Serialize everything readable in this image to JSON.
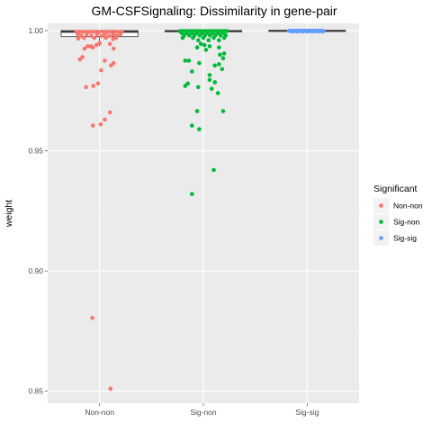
{
  "chart_data": {
    "type": "boxplot-jitter",
    "title": "GM-CSFSignaling: Dissimilarity in gene-pair",
    "xlabel": "",
    "ylabel": "weight",
    "ylim": [
      0.845,
      1.003
    ],
    "y_ticks": [
      0.85,
      0.9,
      0.95,
      1.0
    ],
    "y_tick_labels": [
      "0.85",
      "0.90",
      "0.95",
      "1.00"
    ],
    "grid": true,
    "legend": {
      "title": "Significant",
      "position": "right",
      "entries": [
        {
          "label": "Non-non",
          "color": "#F8766D"
        },
        {
          "label": "Sig-non",
          "color": "#00BA38"
        },
        {
          "label": "Sig-sig",
          "color": "#619CFF"
        }
      ]
    },
    "categories": [
      "Non-non",
      "Sig-non",
      "Sig-sig"
    ],
    "boxes": [
      {
        "category": "Non-non",
        "q1": 0.9975,
        "median": 0.9995,
        "q3": 1.0,
        "whisker_low": 0.9935,
        "whisker_high": 1.0
      },
      {
        "category": "Sig-non",
        "q1": 0.9995,
        "median": 0.9998,
        "q3": 1.0,
        "whisker_low": 0.9993,
        "whisker_high": 1.0
      },
      {
        "category": "Sig-sig",
        "q1": 0.9998,
        "median": 0.9999,
        "q3": 1.0,
        "whisker_low": 0.9997,
        "whisker_high": 1.0
      }
    ],
    "series": [
      {
        "name": "Non-non",
        "color": "#F8766D",
        "points": [
          [
            -0.45,
            0.9995
          ],
          [
            -0.38,
            0.9995
          ],
          [
            -0.33,
            0.9995
          ],
          [
            -0.27,
            0.9995
          ],
          [
            -0.2,
            0.9995
          ],
          [
            -0.14,
            0.9995
          ],
          [
            -0.08,
            0.9995
          ],
          [
            0.0,
            0.9995
          ],
          [
            0.08,
            0.9995
          ],
          [
            0.15,
            0.9995
          ],
          [
            0.22,
            0.9995
          ],
          [
            0.3,
            0.9995
          ],
          [
            0.36,
            0.9995
          ],
          [
            0.43,
            0.9995
          ],
          [
            -0.42,
            0.9985
          ],
          [
            -0.25,
            0.9985
          ],
          [
            -0.05,
            0.9985
          ],
          [
            0.1,
            0.9985
          ],
          [
            0.26,
            0.9985
          ],
          [
            0.4,
            0.9985
          ],
          [
            -0.35,
            0.9978
          ],
          [
            -0.16,
            0.9978
          ],
          [
            0.04,
            0.9978
          ],
          [
            0.18,
            0.9978
          ],
          [
            0.33,
            0.9978
          ],
          [
            -0.3,
            0.997
          ],
          [
            -0.1,
            0.997
          ],
          [
            0.12,
            0.997
          ],
          [
            0.32,
            0.997
          ],
          [
            -0.41,
            0.9967
          ],
          [
            0.26,
            0.9965
          ],
          [
            -0.23,
            0.9935
          ],
          [
            -0.17,
            0.9935
          ],
          [
            -0.06,
            0.994
          ],
          [
            0.0,
            0.9948
          ],
          [
            0.2,
            0.9945
          ],
          [
            -0.29,
            0.9925
          ],
          [
            -0.13,
            0.993
          ],
          [
            0.27,
            0.9925
          ],
          [
            -0.38,
            0.988
          ],
          [
            -0.33,
            0.989
          ],
          [
            0.1,
            0.9875
          ],
          [
            0.27,
            0.9865
          ],
          [
            0.22,
            0.9855
          ],
          [
            0.03,
            0.9835
          ],
          [
            -0.03,
            0.978
          ],
          [
            -0.12,
            0.977
          ],
          [
            -0.26,
            0.9765
          ],
          [
            0.2,
            0.966
          ],
          [
            0.1,
            0.963
          ],
          [
            0.02,
            0.961
          ],
          [
            -0.13,
            0.9605
          ],
          [
            -0.14,
            0.8805
          ],
          [
            0.21,
            0.851
          ]
        ]
      },
      {
        "name": "Sig-non",
        "color": "#00BA38",
        "points": [
          [
            -0.45,
            0.9998
          ],
          [
            -0.4,
            0.9998
          ],
          [
            -0.35,
            0.9998
          ],
          [
            -0.3,
            0.9998
          ],
          [
            -0.25,
            0.9998
          ],
          [
            -0.2,
            0.9998
          ],
          [
            -0.15,
            0.9998
          ],
          [
            -0.1,
            0.9998
          ],
          [
            -0.05,
            0.9998
          ],
          [
            0.0,
            0.9998
          ],
          [
            0.05,
            0.9998
          ],
          [
            0.1,
            0.9998
          ],
          [
            0.15,
            0.9998
          ],
          [
            0.2,
            0.9998
          ],
          [
            0.25,
            0.9998
          ],
          [
            0.3,
            0.9998
          ],
          [
            0.35,
            0.9998
          ],
          [
            0.4,
            0.9998
          ],
          [
            0.45,
            0.9998
          ],
          [
            -0.42,
            0.999
          ],
          [
            -0.32,
            0.999
          ],
          [
            -0.22,
            0.999
          ],
          [
            -0.12,
            0.999
          ],
          [
            -0.02,
            0.999
          ],
          [
            0.08,
            0.999
          ],
          [
            0.18,
            0.999
          ],
          [
            0.28,
            0.999
          ],
          [
            0.38,
            0.999
          ],
          [
            -0.37,
            0.998
          ],
          [
            -0.27,
            0.998
          ],
          [
            -0.17,
            0.998
          ],
          [
            -0.07,
            0.998
          ],
          [
            0.03,
            0.998
          ],
          [
            0.13,
            0.998
          ],
          [
            0.23,
            0.998
          ],
          [
            0.33,
            0.998
          ],
          [
            0.43,
            0.998
          ],
          [
            -0.4,
            0.997
          ],
          [
            -0.2,
            0.997
          ],
          [
            0.0,
            0.997
          ],
          [
            0.2,
            0.997
          ],
          [
            0.4,
            0.997
          ],
          [
            -0.1,
            0.996
          ],
          [
            0.1,
            0.996
          ],
          [
            0.3,
            0.996
          ],
          [
            -0.05,
            0.9945
          ],
          [
            0.02,
            0.994
          ],
          [
            0.12,
            0.9935
          ],
          [
            -0.12,
            0.993
          ],
          [
            0.3,
            0.993
          ],
          [
            0.05,
            0.992
          ],
          [
            0.4,
            0.9905
          ],
          [
            0.32,
            0.99
          ],
          [
            0.38,
            0.9885
          ],
          [
            -0.35,
            0.9875
          ],
          [
            -0.28,
            0.9875
          ],
          [
            0.3,
            0.986
          ],
          [
            0.22,
            0.9855
          ],
          [
            -0.08,
            0.9865
          ],
          [
            0.36,
            0.984
          ],
          [
            -0.22,
            0.983
          ],
          [
            0.12,
            0.9815
          ],
          [
            0.12,
            0.9795
          ],
          [
            0.22,
            0.9785
          ],
          [
            -0.3,
            0.978
          ],
          [
            -0.35,
            0.977
          ],
          [
            0.16,
            0.9758
          ],
          [
            -0.1,
            0.9765
          ],
          [
            0.28,
            0.974
          ],
          [
            -0.12,
            0.9665
          ],
          [
            0.38,
            0.9665
          ],
          [
            -0.22,
            0.9605
          ],
          [
            -0.08,
            0.959
          ],
          [
            0.2,
            0.942
          ],
          [
            -0.22,
            0.932
          ]
        ]
      },
      {
        "name": "Sig-sig",
        "color": "#619CFF",
        "points": [
          [
            -0.35,
            0.99995
          ],
          [
            -0.3,
            0.99995
          ],
          [
            -0.25,
            0.99995
          ],
          [
            -0.2,
            0.99995
          ],
          [
            -0.15,
            0.99995
          ],
          [
            -0.1,
            0.99995
          ],
          [
            -0.05,
            0.99995
          ],
          [
            0.0,
            0.99995
          ],
          [
            0.05,
            0.99995
          ],
          [
            0.1,
            0.99995
          ],
          [
            0.15,
            0.99995
          ],
          [
            0.2,
            0.99995
          ],
          [
            0.25,
            0.99995
          ],
          [
            0.3,
            0.99995
          ],
          [
            -0.32,
            0.9998
          ],
          [
            -0.22,
            0.9998
          ],
          [
            -0.12,
            0.9998
          ],
          [
            -0.02,
            0.9998
          ],
          [
            0.08,
            0.9998
          ],
          [
            0.18,
            0.9998
          ],
          [
            0.28,
            0.9998
          ],
          [
            -0.27,
            0.99975
          ],
          [
            -0.17,
            0.99975
          ],
          [
            -0.07,
            0.99975
          ],
          [
            0.03,
            0.99975
          ],
          [
            0.13,
            0.99975
          ],
          [
            0.23,
            0.99975
          ],
          [
            0.31,
            0.99975
          ],
          [
            -0.3,
            0.9997
          ],
          [
            -0.2,
            0.9997
          ],
          [
            -0.1,
            0.9997
          ],
          [
            0.0,
            0.9997
          ],
          [
            0.1,
            0.9997
          ],
          [
            0.2,
            0.9997
          ],
          [
            0.29,
            0.9997
          ]
        ]
      }
    ]
  }
}
